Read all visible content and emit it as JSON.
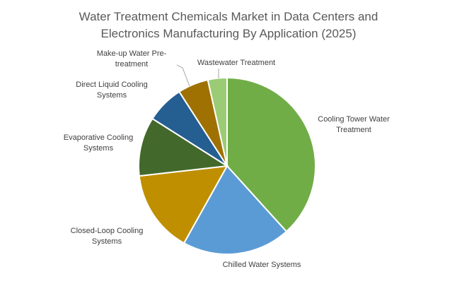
{
  "title": {
    "line1": "Water Treatment Chemicals Market in Data Centers and",
    "line2": "Electronics Manufacturing By Application (2025)"
  },
  "chart_data": {
    "type": "pie",
    "title": "Water Treatment Chemicals Market in Data Centers and Electronics Manufacturing By Application (2025)",
    "unit": "share",
    "slices": [
      {
        "label": "Cooling Tower Water Treatment",
        "label_lines": [
          "Cooling Tower Water",
          "Treatment"
        ],
        "value": 38.3,
        "color": "#70AD47"
      },
      {
        "label": "Chilled Water Systems",
        "label_lines": [
          "Chilled Water Systems"
        ],
        "value": 19.8,
        "color": "#5B9BD5"
      },
      {
        "label": "Closed-Loop Cooling Systems",
        "label_lines": [
          "Closed-Loop Cooling",
          "Systems"
        ],
        "value": 15.1,
        "color": "#BF8F00"
      },
      {
        "label": "Evaporative Cooling Systems",
        "label_lines": [
          "Evaporative Cooling",
          "Systems"
        ],
        "value": 10.8,
        "color": "#43682B"
      },
      {
        "label": "Direct Liquid Cooling Systems",
        "label_lines": [
          "Direct Liquid Cooling",
          "Systems"
        ],
        "value": 6.9,
        "color": "#255E91"
      },
      {
        "label": "Make-up Water Pre-treatment",
        "label_lines": [
          "Make-up Water Pre-",
          "treatment"
        ],
        "value": 5.6,
        "color": "#9E7102"
      },
      {
        "label": "Wastewater Treatment",
        "label_lines": [
          "Wastewater Treatment"
        ],
        "value": 3.5,
        "color": "#9BCB74"
      }
    ],
    "start_angle_deg": 0,
    "direction": "clockwise",
    "legend": "none",
    "data_labels": "category names outside slices"
  }
}
